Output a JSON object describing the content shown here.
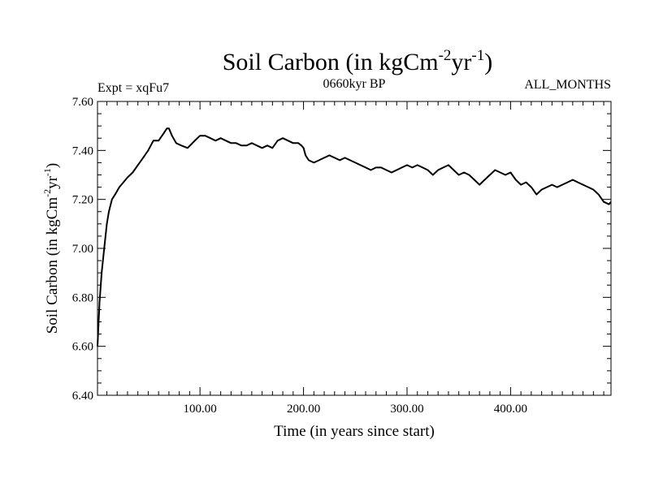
{
  "chart_data": {
    "type": "line",
    "title": {
      "main": "Soil Carbon (in kgCm",
      "sup1": "-2",
      "mid": "yr",
      "sup2": "-1",
      "close": ")"
    },
    "subtitle_left": "Expt = xqFu7",
    "subtitle_center": "0660kyr BP",
    "subtitle_right": "ALL_MONTHS",
    "xlabel": "Time (in years since start)",
    "ylabel": {
      "main": "Soil Carbon (in kgCm",
      "sup1": "-2",
      "mid": "yr",
      "sup2": "-1",
      "close": ")"
    },
    "xlim": [
      1,
      497
    ],
    "ylim": [
      6.4,
      7.6
    ],
    "x_major_ticks": [
      100,
      200,
      300,
      400
    ],
    "x_tick_labels": [
      "100.00",
      "200.00",
      "300.00",
      "400.00"
    ],
    "y_major_ticks": [
      6.4,
      6.6,
      6.8,
      7.0,
      7.2,
      7.4,
      7.6
    ],
    "y_tick_labels": [
      "6.40",
      "6.60",
      "6.80",
      "7.00",
      "7.20",
      "7.40",
      "7.60"
    ],
    "series": [
      {
        "name": "Soil Carbon",
        "x": [
          1,
          3,
          5,
          8,
          10,
          12,
          15,
          18,
          22,
          26,
          30,
          35,
          40,
          45,
          50,
          55,
          60,
          65,
          68,
          70,
          73,
          77,
          82,
          88,
          95,
          100,
          105,
          110,
          115,
          120,
          125,
          130,
          135,
          140,
          145,
          150,
          155,
          160,
          165,
          170,
          175,
          180,
          185,
          190,
          195,
          198,
          200,
          202,
          205,
          210,
          215,
          220,
          225,
          230,
          235,
          240,
          245,
          250,
          255,
          260,
          265,
          270,
          275,
          280,
          285,
          290,
          295,
          300,
          305,
          310,
          315,
          320,
          325,
          330,
          335,
          340,
          345,
          350,
          355,
          360,
          365,
          370,
          375,
          380,
          385,
          390,
          395,
          400,
          405,
          410,
          415,
          420,
          425,
          430,
          435,
          440,
          445,
          450,
          455,
          460,
          465,
          470,
          475,
          480,
          485,
          490,
          495,
          497
        ],
        "y": [
          6.6,
          6.78,
          6.9,
          7.02,
          7.1,
          7.15,
          7.2,
          7.22,
          7.25,
          7.27,
          7.29,
          7.31,
          7.34,
          7.37,
          7.4,
          7.44,
          7.44,
          7.47,
          7.49,
          7.49,
          7.46,
          7.43,
          7.42,
          7.41,
          7.44,
          7.46,
          7.46,
          7.45,
          7.44,
          7.45,
          7.44,
          7.43,
          7.43,
          7.42,
          7.42,
          7.43,
          7.42,
          7.41,
          7.42,
          7.41,
          7.44,
          7.45,
          7.44,
          7.43,
          7.43,
          7.42,
          7.41,
          7.38,
          7.36,
          7.35,
          7.36,
          7.37,
          7.38,
          7.37,
          7.36,
          7.37,
          7.36,
          7.35,
          7.34,
          7.33,
          7.32,
          7.33,
          7.33,
          7.32,
          7.31,
          7.32,
          7.33,
          7.34,
          7.33,
          7.34,
          7.33,
          7.32,
          7.3,
          7.32,
          7.33,
          7.34,
          7.32,
          7.3,
          7.31,
          7.3,
          7.28,
          7.26,
          7.28,
          7.3,
          7.32,
          7.31,
          7.3,
          7.31,
          7.28,
          7.26,
          7.27,
          7.25,
          7.22,
          7.24,
          7.25,
          7.26,
          7.25,
          7.26,
          7.27,
          7.28,
          7.27,
          7.26,
          7.25,
          7.24,
          7.22,
          7.19,
          7.18,
          7.19
        ]
      }
    ]
  }
}
